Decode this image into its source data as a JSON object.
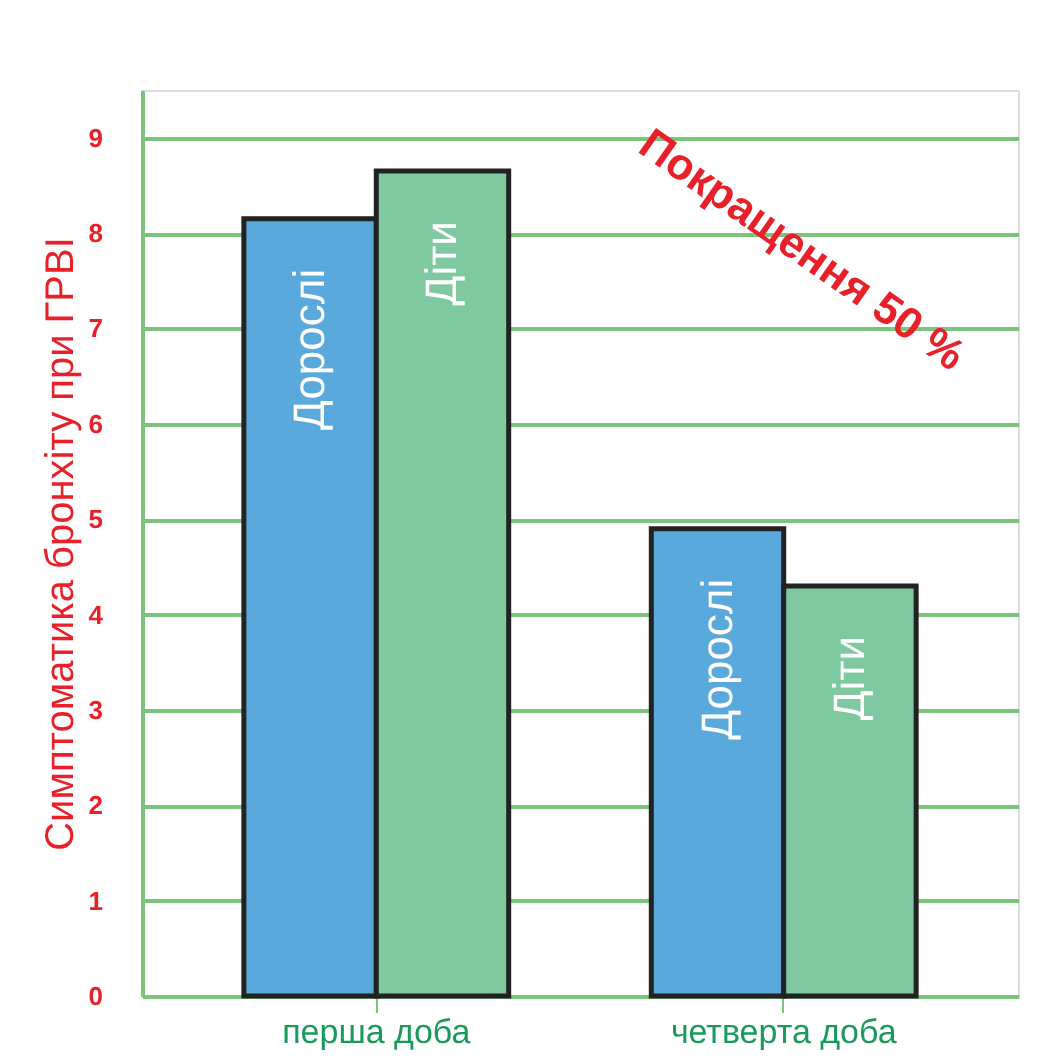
{
  "chart_data": {
    "type": "bar",
    "ylabel": "Симптоматика бронхіту при ГРВІ",
    "categories": [
      "перша доба",
      "четверта доба"
    ],
    "series": [
      {
        "name": "Дорослі",
        "color": "#5aa9dc",
        "values": [
          8.15,
          4.9
        ]
      },
      {
        "name": "Діти",
        "color": "#7fc9a0",
        "values": [
          8.65,
          4.3
        ]
      }
    ],
    "ylim": [
      0,
      9.5
    ],
    "yticks": [
      0,
      1,
      2,
      3,
      4,
      5,
      6,
      7,
      8,
      9
    ],
    "grid": "y",
    "annotations": [
      "Покращення 50 %"
    ]
  }
}
